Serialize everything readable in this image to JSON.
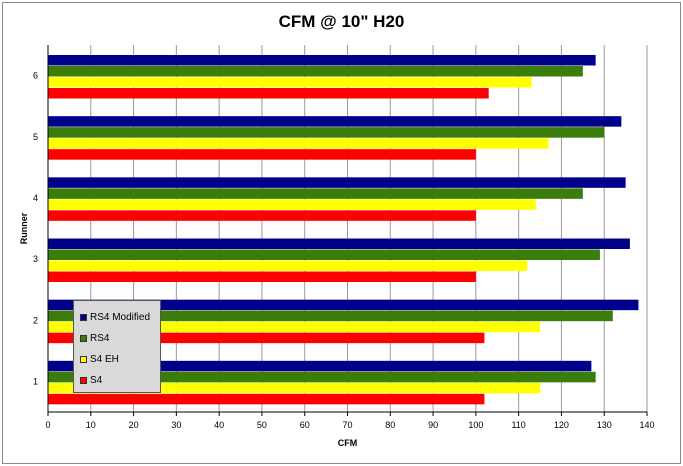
{
  "chart_data": {
    "type": "bar",
    "orientation": "horizontal",
    "title": "CFM @ 10\" H20",
    "xlabel": "CFM",
    "ylabel": "Runner",
    "categories": [
      "1",
      "2",
      "3",
      "4",
      "5",
      "6"
    ],
    "xlim": [
      0,
      140
    ],
    "xticks": [
      0,
      10,
      20,
      30,
      40,
      50,
      60,
      70,
      80,
      90,
      100,
      110,
      120,
      130,
      140
    ],
    "grid": "vertical",
    "legend_position": "bottom-left",
    "series": [
      {
        "name": "RS4 Modified",
        "color": "#00008b",
        "values": [
          127,
          138,
          136,
          135,
          134,
          128
        ]
      },
      {
        "name": "RS4",
        "color": "#3a7d0a",
        "values": [
          128,
          132,
          129,
          125,
          130,
          125
        ]
      },
      {
        "name": "S4 EH",
        "color": "#ffff00",
        "values": [
          115,
          115,
          112,
          114,
          117,
          113
        ]
      },
      {
        "name": "S4",
        "color": "#ff0000",
        "values": [
          102,
          102,
          100,
          100,
          100,
          103
        ]
      }
    ]
  }
}
